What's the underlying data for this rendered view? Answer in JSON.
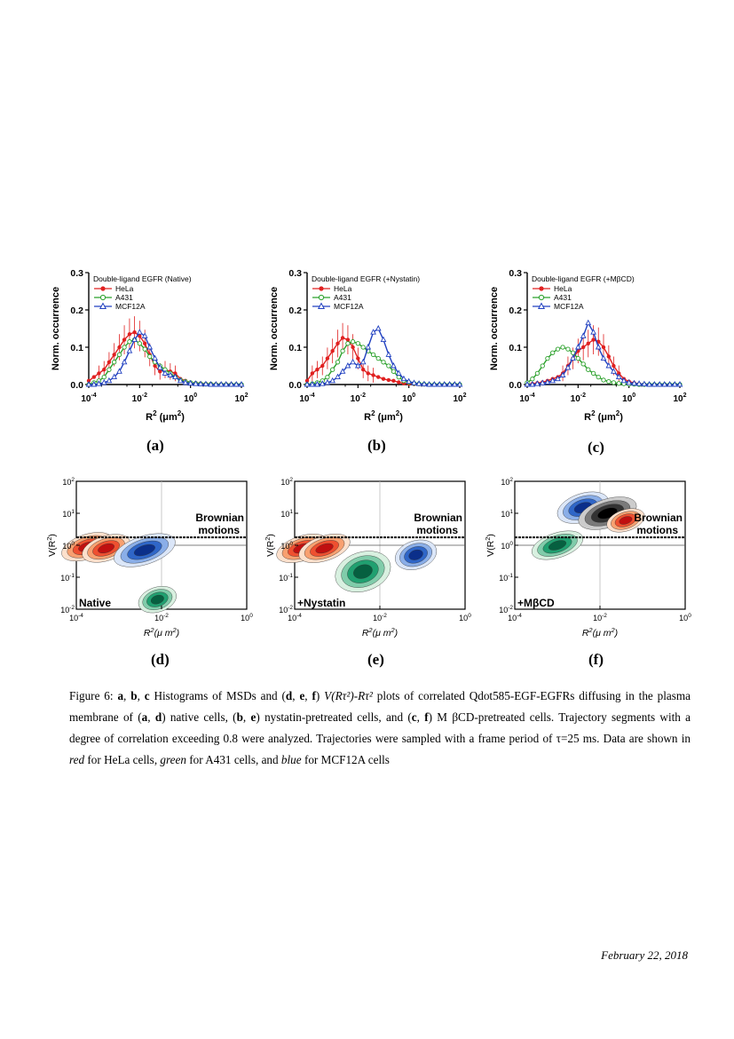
{
  "histograms": [
    {
      "id": "a",
      "legend_title": "Double-ligand EGFR (Native)",
      "panel_label": "(a)"
    },
    {
      "id": "b",
      "legend_title": "Double-ligand EGFR (+Nystatin)",
      "panel_label": "(b)"
    },
    {
      "id": "c",
      "legend_title": "Double-ligand EGFR (+MβCD)",
      "panel_label": "(c)"
    }
  ],
  "hist_axes": {
    "ylabel": "Norm. occurrence",
    "xlabel": "R",
    "xlabel_sup": "2",
    "xlabel_unit": "(μm",
    "xlabel_unit_sup": "2",
    "xlabel_close": ")",
    "y_ticks": [
      "0.0",
      "0.1",
      "0.2",
      "0.3"
    ],
    "x_ticks": [
      {
        "base": "10",
        "exp": "-4"
      },
      {
        "base": "10",
        "exp": "-2"
      },
      {
        "base": "10",
        "exp": "0"
      },
      {
        "base": "10",
        "exp": "2"
      }
    ]
  },
  "legend_entries": [
    "HeLa",
    "A431",
    "MCF12A"
  ],
  "colors": {
    "hela": "#e02020",
    "a431": "#2aa02a",
    "mcf": "#2040c0"
  },
  "chart_data": [
    {
      "type": "line",
      "title": "Double-ligand EGFR (Native)",
      "xlabel": "R2 (μm2)",
      "ylabel": "Norm. occurrence",
      "xscale": "log",
      "xlim": [
        0.0001,
        100
      ],
      "ylim": [
        0,
        0.3
      ],
      "x": [
        0.0001,
        0.00016,
        0.00025,
        0.0004,
        0.00063,
        0.001,
        0.0016,
        0.0025,
        0.004,
        0.0063,
        0.01,
        0.016,
        0.025,
        0.04,
        0.063,
        0.1,
        0.16,
        0.25,
        0.4,
        0.63,
        1,
        1.6,
        2.5,
        4,
        6.3,
        10,
        16,
        25,
        40,
        63,
        100
      ],
      "series": [
        {
          "name": "HeLa",
          "values": [
            0.01,
            0.02,
            0.03,
            0.04,
            0.06,
            0.08,
            0.1,
            0.12,
            0.135,
            0.14,
            0.13,
            0.11,
            0.08,
            0.05,
            0.035,
            0.04,
            0.035,
            0.03,
            0.015,
            0.01,
            0.005,
            0.004,
            0.003,
            0.002,
            0.002,
            0.001,
            0.001,
            0.001,
            0.001,
            0.0,
            0.0
          ]
        },
        {
          "name": "A431",
          "values": [
            0.0,
            0.005,
            0.01,
            0.02,
            0.04,
            0.06,
            0.08,
            0.1,
            0.115,
            0.12,
            0.11,
            0.095,
            0.075,
            0.06,
            0.05,
            0.04,
            0.03,
            0.02,
            0.012,
            0.008,
            0.005,
            0.003,
            0.002,
            0.001,
            0.001,
            0.0,
            0.0,
            0.0,
            0.0,
            0.0,
            0.0
          ]
        },
        {
          "name": "MCF12A",
          "values": [
            0.0,
            0.0,
            0.002,
            0.005,
            0.01,
            0.02,
            0.035,
            0.06,
            0.09,
            0.12,
            0.14,
            0.13,
            0.1,
            0.07,
            0.045,
            0.03,
            0.025,
            0.02,
            0.01,
            0.005,
            0.003,
            0.002,
            0.001,
            0.001,
            0.0,
            0.0,
            0.0,
            0.0,
            0.0,
            0.0,
            0.0
          ]
        }
      ]
    },
    {
      "type": "line",
      "title": "Double-ligand EGFR (+Nystatin)",
      "xlabel": "R2 (μm2)",
      "ylabel": "Norm. occurrence",
      "xscale": "log",
      "xlim": [
        0.0001,
        100
      ],
      "ylim": [
        0,
        0.3
      ],
      "x": [
        0.0001,
        0.00016,
        0.00025,
        0.0004,
        0.00063,
        0.001,
        0.0016,
        0.0025,
        0.004,
        0.0063,
        0.01,
        0.016,
        0.025,
        0.04,
        0.063,
        0.1,
        0.16,
        0.25,
        0.4,
        0.63,
        1,
        1.6,
        2.5,
        4,
        6.3,
        10,
        16,
        25,
        40,
        63,
        100
      ],
      "series": [
        {
          "name": "HeLa",
          "values": [
            0.01,
            0.03,
            0.04,
            0.05,
            0.07,
            0.09,
            0.11,
            0.125,
            0.12,
            0.1,
            0.07,
            0.04,
            0.03,
            0.025,
            0.02,
            0.015,
            0.012,
            0.01,
            0.006,
            0.003,
            0.002,
            0.001,
            0.001,
            0.0,
            0.0,
            0.0,
            0.0,
            0.0,
            0.0,
            0.0,
            0.0
          ]
        },
        {
          "name": "A431",
          "values": [
            0.0,
            0.002,
            0.005,
            0.01,
            0.02,
            0.04,
            0.06,
            0.09,
            0.11,
            0.115,
            0.11,
            0.1,
            0.09,
            0.08,
            0.07,
            0.06,
            0.05,
            0.035,
            0.02,
            0.01,
            0.006,
            0.003,
            0.002,
            0.001,
            0.0,
            0.0,
            0.0,
            0.0,
            0.0,
            0.0,
            0.0
          ]
        },
        {
          "name": "MCF12A",
          "values": [
            0.0,
            0.0,
            0.0,
            0.002,
            0.005,
            0.01,
            0.02,
            0.035,
            0.05,
            0.06,
            0.05,
            0.06,
            0.1,
            0.14,
            0.15,
            0.12,
            0.08,
            0.05,
            0.03,
            0.015,
            0.008,
            0.004,
            0.002,
            0.001,
            0.0,
            0.0,
            0.0,
            0.0,
            0.0,
            0.0,
            0.0
          ]
        }
      ]
    },
    {
      "type": "line",
      "title": "Double-ligand EGFR (+MβCD)",
      "xlabel": "R2 (μm2)",
      "ylabel": "Norm. occurrence",
      "xscale": "log",
      "xlim": [
        0.0001,
        100
      ],
      "ylim": [
        0,
        0.3
      ],
      "x": [
        0.0001,
        0.00016,
        0.00025,
        0.0004,
        0.00063,
        0.001,
        0.0016,
        0.0025,
        0.004,
        0.0063,
        0.01,
        0.016,
        0.025,
        0.04,
        0.063,
        0.1,
        0.16,
        0.25,
        0.4,
        0.63,
        1,
        1.6,
        2.5,
        4,
        6.3,
        10,
        16,
        25,
        40,
        63,
        100
      ],
      "series": [
        {
          "name": "HeLa",
          "values": [
            0.0,
            0.002,
            0.004,
            0.006,
            0.01,
            0.015,
            0.02,
            0.03,
            0.05,
            0.07,
            0.09,
            0.1,
            0.11,
            0.12,
            0.115,
            0.1,
            0.075,
            0.05,
            0.03,
            0.015,
            0.008,
            0.004,
            0.002,
            0.001,
            0.0,
            0.0,
            0.0,
            0.0,
            0.0,
            0.0,
            0.0
          ]
        },
        {
          "name": "A431",
          "values": [
            0.005,
            0.015,
            0.03,
            0.05,
            0.07,
            0.085,
            0.095,
            0.1,
            0.095,
            0.085,
            0.07,
            0.055,
            0.04,
            0.03,
            0.02,
            0.012,
            0.008,
            0.005,
            0.003,
            0.002,
            0.001,
            0.001,
            0.0,
            0.0,
            0.0,
            0.0,
            0.0,
            0.0,
            0.0,
            0.0,
            0.0
          ]
        },
        {
          "name": "MCF12A",
          "values": [
            0.0,
            0.0,
            0.002,
            0.004,
            0.006,
            0.01,
            0.015,
            0.025,
            0.045,
            0.07,
            0.1,
            0.13,
            0.165,
            0.14,
            0.1,
            0.07,
            0.05,
            0.035,
            0.02,
            0.01,
            0.005,
            0.003,
            0.002,
            0.001,
            0.0,
            0.0,
            0.0,
            0.0,
            0.0,
            0.0,
            0.0
          ]
        }
      ]
    }
  ],
  "contours": [
    {
      "id": "d",
      "corner_label": "Native",
      "panel_label": "(d)"
    },
    {
      "id": "e",
      "corner_label": "+Nystatin",
      "panel_label": "(e)"
    },
    {
      "id": "f",
      "corner_label": "+MβCD",
      "panel_label": "(f)"
    }
  ],
  "contour_axes": {
    "ylabel": "V(R",
    "ylabel_sup": "2",
    "ylabel_close": ")",
    "xlabel": "R",
    "xlabel_sup": "2",
    "xlabel_unit": "(μ m",
    "xlabel_unit_sup": "2",
    "xlabel_close": ")",
    "brownian_line1": "Brownian",
    "brownian_line2": "motions",
    "y_ticks": [
      {
        "base": "10",
        "exp": "-2"
      },
      {
        "base": "10",
        "exp": "-1"
      },
      {
        "base": "10",
        "exp": "0"
      },
      {
        "base": "10",
        "exp": "1"
      },
      {
        "base": "10",
        "exp": "2"
      }
    ],
    "x_ticks": [
      {
        "base": "10",
        "exp": "-4"
      },
      {
        "base": "10",
        "exp": "-2"
      },
      {
        "base": "10",
        "exp": "0"
      }
    ]
  },
  "caption": {
    "figure_label": "Figure 6:",
    "a": "a",
    "sep1": ",",
    "b": "b",
    "sep2": ",",
    "c": "c",
    "t1": "Histograms of MSDs and (",
    "d": "d",
    "e": "e",
    "f": "f",
    "t2": ") ",
    "vexpr": "V(Rτ²)-Rτ²",
    "t3": "plots of correlated Qdot585-EGF-EGFRs diffusing in the plasma membrane of (",
    "t4": ") native cells, (",
    "t5": ") nystatin-pretreated cells, and (",
    "t6": ") M βCD-pretreated cells. Trajectory segments with a degree of correlation exceeding 0.8 were analyzed. Trajectories were sampled with a frame period of τ=25 ms. Data are shown in ",
    "red": "red",
    "t7": " for HeLa cells, ",
    "green": "green",
    "t8": " for A431 cells, and ",
    "blue": "blue",
    "t9": " for MCF12A cells"
  },
  "footer": {
    "date": "February 22, 2018"
  }
}
